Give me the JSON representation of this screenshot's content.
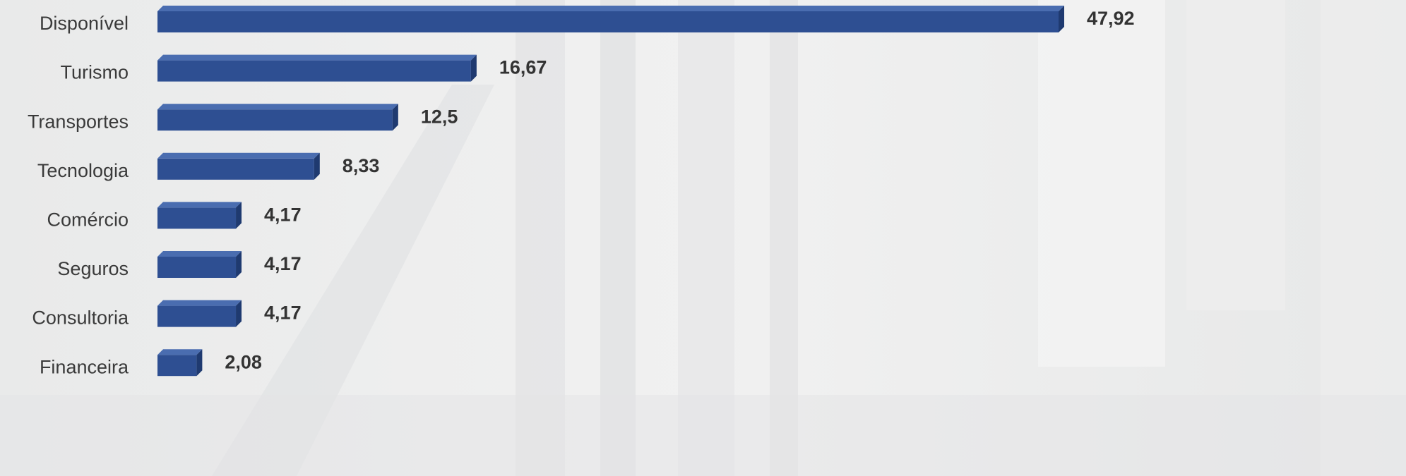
{
  "chart_data": {
    "type": "bar",
    "orientation": "horizontal",
    "categories": [
      "Disponível",
      "Turismo",
      "Transportes",
      "Tecnologia",
      "Comércio",
      "Seguros",
      "Consultoria",
      "Financeira"
    ],
    "values": [
      47.92,
      16.67,
      12.5,
      8.33,
      4.17,
      4.17,
      4.17,
      2.08
    ],
    "value_labels": [
      "47,92",
      "16,67",
      "12,5",
      "8,33",
      "4,17",
      "4,17",
      "4,17",
      "2,08"
    ],
    "color": "#2e4f92"
  }
}
